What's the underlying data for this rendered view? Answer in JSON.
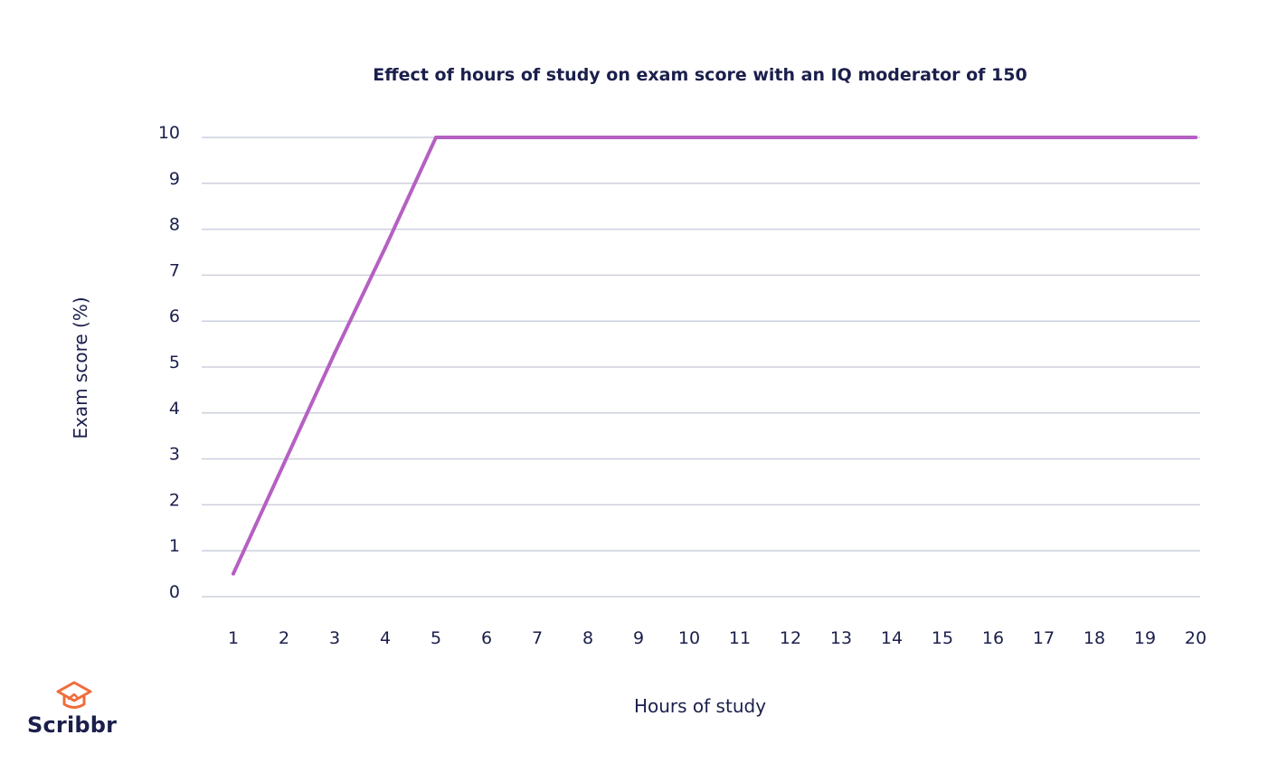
{
  "chart_data": {
    "type": "line",
    "title": "Effect of hours of study on exam score with an IQ moderator of 150",
    "xlabel": "Hours of study",
    "ylabel": "Exam score (%)",
    "x": [
      1,
      2,
      3,
      4,
      5,
      6,
      7,
      8,
      9,
      10,
      11,
      12,
      13,
      14,
      15,
      16,
      17,
      18,
      19,
      20
    ],
    "x_tick_labels": [
      "1",
      "2",
      "3",
      "4",
      "5",
      "6",
      "7",
      "8",
      "9",
      "10",
      "11",
      "12",
      "13",
      "14",
      "15",
      "16",
      "17",
      "18",
      "19",
      "20"
    ],
    "y_tick_labels": [
      "0",
      "1",
      "2",
      "3",
      "4",
      "5",
      "6",
      "7",
      "8",
      "9",
      "10"
    ],
    "ylim": [
      0,
      10
    ],
    "grid": true,
    "series": [
      {
        "values": [
          0.5,
          2.9,
          5.3,
          7.6,
          10,
          10,
          10,
          10,
          10,
          10,
          10,
          10,
          10,
          10,
          10,
          10,
          10,
          10,
          10,
          10
        ]
      }
    ],
    "colors": {
      "line": "#b560c2",
      "grid": "#cdd0de",
      "text": "#1b1f4b"
    }
  },
  "brand": {
    "name": "Scribbr",
    "icon": "graduation-cap-icon",
    "accent": "#f06c3b"
  }
}
